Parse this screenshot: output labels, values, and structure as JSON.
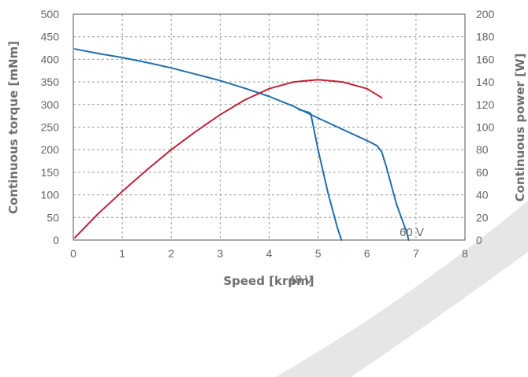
{
  "chart_data": {
    "type": "line",
    "title": "",
    "xlabel": "Speed [krpm]",
    "ylabel": "Continuous torque [mNm]",
    "y2label": "Continuous power [W]",
    "xlim": [
      0,
      8
    ],
    "ylim": [
      0,
      500
    ],
    "y2lim": [
      0,
      200
    ],
    "xticks": [
      "0",
      "1",
      "2",
      "3",
      "4",
      "5",
      "6",
      "7",
      "8"
    ],
    "yticks": [
      "0",
      "50",
      "100",
      "150",
      "200",
      "250",
      "300",
      "350",
      "400",
      "450",
      "500"
    ],
    "y2ticks": [
      "0",
      "20",
      "40",
      "60",
      "80",
      "100",
      "120",
      "140",
      "160",
      "180",
      "200"
    ],
    "grid": true,
    "colors": {
      "torque": "#1f6fae",
      "power": "#c0243a",
      "background_band": "#e6e6e6"
    },
    "series": [
      {
        "label": "60 V",
        "axis": "left",
        "x": [
          0.03,
          0.5,
          1.0,
          1.5,
          2.0,
          2.5,
          3.0,
          3.5,
          4.0,
          4.5,
          5.0,
          5.5,
          6.0,
          6.2,
          6.3,
          6.4,
          6.5,
          6.6,
          6.7,
          6.8,
          6.85
        ],
        "y": [
          423,
          413,
          404,
          393,
          381,
          367,
          353,
          336,
          318,
          296,
          270,
          245,
          220,
          209,
          195,
          160,
          120,
          80,
          50,
          20,
          0
        ]
      },
      {
        "label": "48 V",
        "axis": "left",
        "x": [
          4.6,
          4.7,
          4.8,
          4.85,
          5.0,
          5.2,
          5.4,
          5.48
        ],
        "y": [
          289,
          286,
          283,
          280,
          200,
          105,
          25,
          0
        ]
      },
      {
        "label": "",
        "axis": "right",
        "x": [
          0.03,
          0.5,
          1.0,
          1.5,
          2.0,
          2.5,
          3.0,
          3.5,
          4.0,
          4.5,
          5.0,
          5.5,
          6.0,
          6.3
        ],
        "y": [
          2,
          23,
          43,
          62,
          80,
          96,
          111,
          124,
          134,
          140,
          142,
          140,
          134,
          126
        ]
      }
    ]
  }
}
